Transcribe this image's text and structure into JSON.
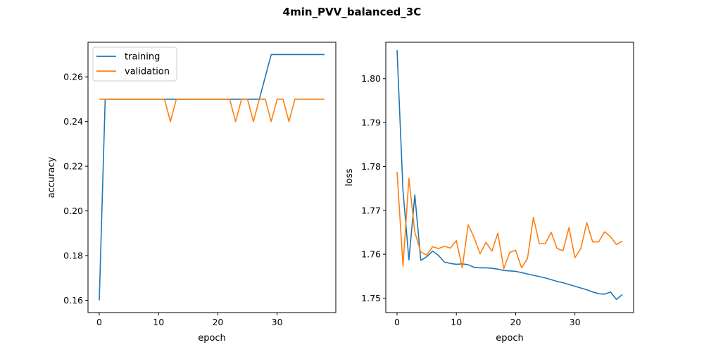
{
  "figure": {
    "title": "4min_PVV_balanced_3C"
  },
  "colors": {
    "training": "#1f77b4",
    "validation": "#ff7f0e"
  },
  "chart_data": [
    {
      "type": "line",
      "title": "",
      "xlabel": "epoch",
      "ylabel": "accuracy",
      "xlim": [
        -1.9,
        39.9
      ],
      "ylim": [
        0.1545,
        0.2755
      ],
      "xticks": [
        0,
        10,
        20,
        30
      ],
      "yticks": [
        0.16,
        0.18,
        0.2,
        0.22,
        0.24,
        0.26
      ],
      "ytick_labels": [
        "0.16",
        "0.18",
        "0.20",
        "0.22",
        "0.24",
        "0.26"
      ],
      "legend": {
        "placement": "upper-left",
        "entries": [
          "training",
          "validation"
        ]
      },
      "x": [
        0,
        1,
        2,
        3,
        4,
        5,
        6,
        7,
        8,
        9,
        10,
        11,
        12,
        13,
        14,
        15,
        16,
        17,
        18,
        19,
        20,
        21,
        22,
        23,
        24,
        25,
        26,
        27,
        28,
        29,
        30,
        31,
        32,
        33,
        34,
        35,
        36,
        37,
        38
      ],
      "series": [
        {
          "name": "training",
          "values": [
            0.16,
            0.25,
            0.25,
            0.25,
            0.25,
            0.25,
            0.25,
            0.25,
            0.25,
            0.25,
            0.25,
            0.25,
            0.25,
            0.25,
            0.25,
            0.25,
            0.25,
            0.25,
            0.25,
            0.25,
            0.25,
            0.25,
            0.25,
            0.25,
            0.25,
            0.25,
            0.25,
            0.25,
            0.26,
            0.27,
            0.27,
            0.27,
            0.27,
            0.27,
            0.27,
            0.27,
            0.27,
            0.27,
            0.27
          ]
        },
        {
          "name": "validation",
          "values": [
            0.25,
            0.25,
            0.25,
            0.25,
            0.25,
            0.25,
            0.25,
            0.25,
            0.25,
            0.25,
            0.25,
            0.25,
            0.24,
            0.25,
            0.25,
            0.25,
            0.25,
            0.25,
            0.25,
            0.25,
            0.25,
            0.25,
            0.25,
            0.24,
            0.25,
            0.25,
            0.24,
            0.25,
            0.25,
            0.24,
            0.25,
            0.25,
            0.24,
            0.25,
            0.25,
            0.25,
            0.25,
            0.25,
            0.25
          ]
        }
      ]
    },
    {
      "type": "line",
      "title": "",
      "xlabel": "epoch",
      "ylabel": "loss",
      "xlim": [
        -1.9,
        39.9
      ],
      "ylim": [
        1.7467,
        1.8083
      ],
      "xticks": [
        0,
        10,
        20,
        30
      ],
      "yticks": [
        1.75,
        1.76,
        1.77,
        1.78,
        1.79,
        1.8
      ],
      "ytick_labels": [
        "1.75",
        "1.76",
        "1.77",
        "1.78",
        "1.79",
        "1.80"
      ],
      "x": [
        0,
        1,
        2,
        3,
        4,
        5,
        6,
        7,
        8,
        9,
        10,
        11,
        12,
        13,
        14,
        15,
        16,
        17,
        18,
        19,
        20,
        21,
        22,
        23,
        24,
        25,
        26,
        27,
        28,
        29,
        30,
        31,
        32,
        33,
        34,
        35,
        36,
        37,
        38
      ],
      "series": [
        {
          "name": "training",
          "values": [
            1.8065,
            1.7745,
            1.7587,
            1.7735,
            1.7586,
            1.7594,
            1.7607,
            1.7597,
            1.7582,
            1.7579,
            1.7577,
            1.7578,
            1.7576,
            1.757,
            1.7569,
            1.7569,
            1.7568,
            1.7566,
            1.7563,
            1.7562,
            1.7561,
            1.7558,
            1.7555,
            1.7552,
            1.7549,
            1.7546,
            1.7542,
            1.7538,
            1.7535,
            1.7531,
            1.7527,
            1.7523,
            1.7519,
            1.7514,
            1.751,
            1.7509,
            1.7514,
            1.7497,
            1.7508
          ]
        },
        {
          "name": "validation",
          "values": [
            1.7788,
            1.7573,
            1.7773,
            1.765,
            1.7605,
            1.7598,
            1.7617,
            1.7613,
            1.7618,
            1.7614,
            1.7631,
            1.7569,
            1.7667,
            1.7638,
            1.7601,
            1.7627,
            1.7607,
            1.7648,
            1.7567,
            1.7604,
            1.7609,
            1.7569,
            1.759,
            1.7684,
            1.7624,
            1.7624,
            1.765,
            1.7613,
            1.7608,
            1.7661,
            1.7592,
            1.7613,
            1.7672,
            1.7628,
            1.7628,
            1.7651,
            1.764,
            1.7622,
            1.763
          ]
        }
      ]
    }
  ]
}
